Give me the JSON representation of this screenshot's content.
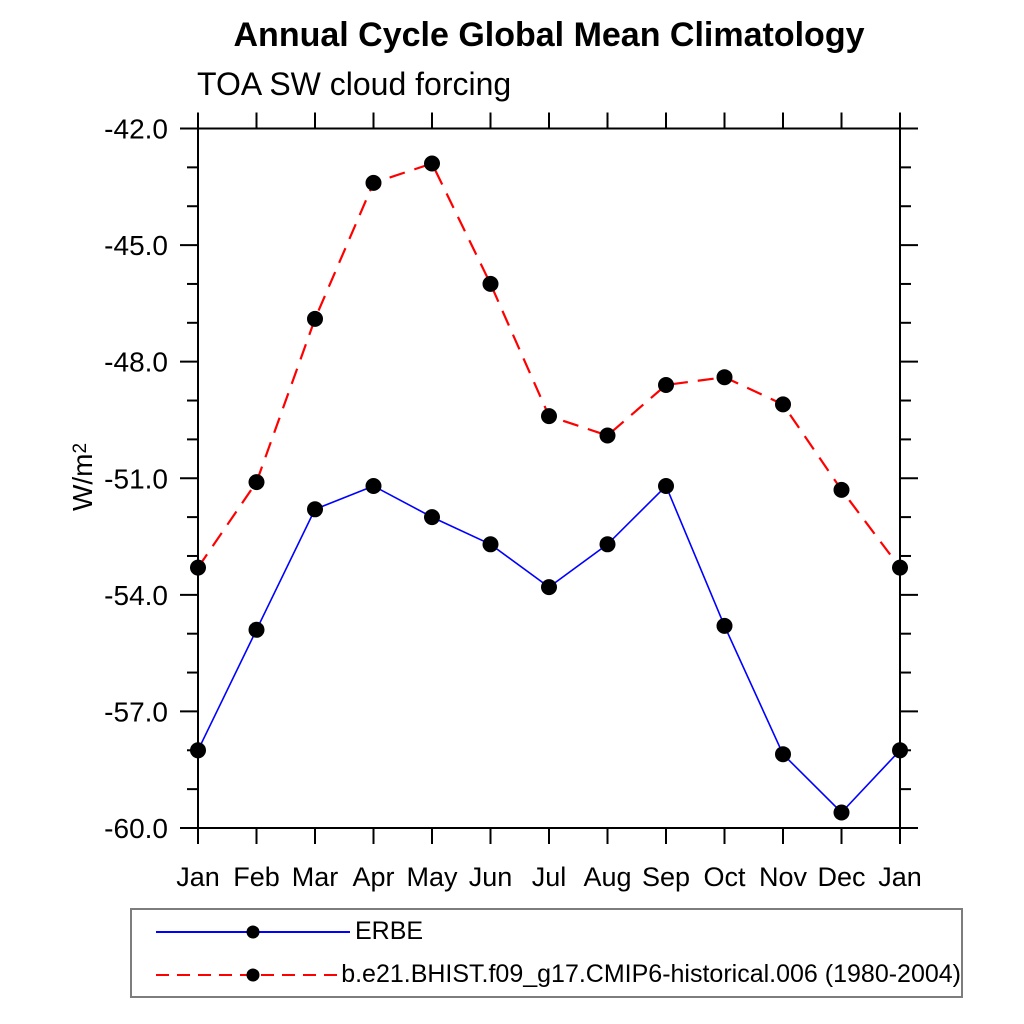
{
  "header": {
    "title": "Annual Cycle Global Mean Climatology",
    "subtitle": "TOA SW cloud forcing"
  },
  "y_axis": {
    "label_base": "W/m",
    "label_sup": "2"
  },
  "chart_data": {
    "type": "line",
    "title": "Annual Cycle Global Mean Climatology",
    "subtitle": "TOA SW cloud forcing",
    "ylabel": "W/m^2",
    "xlabel": "",
    "x_categories": [
      "Jan",
      "Feb",
      "Mar",
      "Apr",
      "May",
      "Jun",
      "Jul",
      "Aug",
      "Sep",
      "Oct",
      "Nov",
      "Dec",
      "Jan"
    ],
    "ylim": [
      -60.0,
      -42.0
    ],
    "yticks": {
      "major": [
        -42,
        -45,
        -48,
        -51,
        -54,
        -57,
        -60
      ],
      "labels": [
        "-42.0",
        "-45.0",
        "-48.0",
        "-51.0",
        "-54.0",
        "-57.0",
        "-60.0"
      ],
      "minor_step": 1.0
    },
    "grid": false,
    "legend_position": "bottom-left-box",
    "axis_color": "#000000",
    "series": [
      {
        "name": "ERBE",
        "color": "#0000ff",
        "line_style": "solid",
        "marker": "filled-circle",
        "marker_color": "#000000",
        "values": [
          -58.0,
          -54.9,
          -51.8,
          -51.2,
          -52.0,
          -52.7,
          -53.8,
          -52.7,
          -51.2,
          -54.8,
          -58.1,
          -59.6,
          -58.0
        ]
      },
      {
        "name": "b.e21.BHIST.f09_g17.CMIP6-historical.006 (1980-2004)",
        "color": "#ff0000",
        "line_style": "dashed",
        "marker": "filled-circle",
        "marker_color": "#000000",
        "values": [
          -53.3,
          -51.1,
          -46.9,
          -43.4,
          -42.9,
          -46.0,
          -49.4,
          -49.9,
          -48.6,
          -48.4,
          -49.1,
          -51.3,
          -53.3
        ]
      }
    ]
  }
}
